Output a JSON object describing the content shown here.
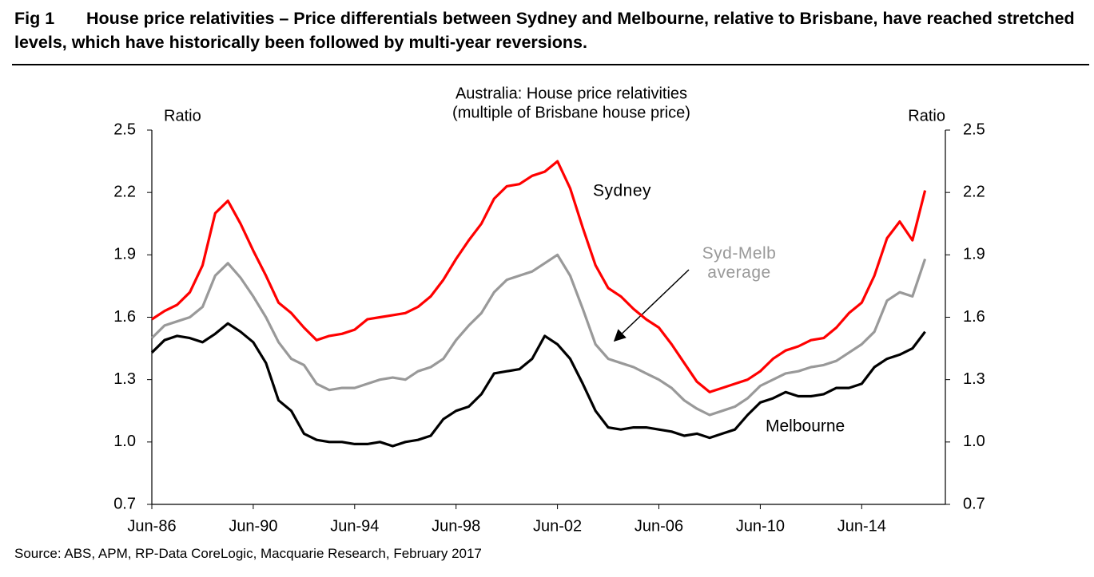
{
  "header": {
    "figure": "Fig 1",
    "title": "House price relativities – Price differentials between Sydney and Melbourne, relative to Brisbane, have reached stretched levels, which have historically been followed by multi-year reversions."
  },
  "chart_data": {
    "type": "line",
    "title": "Australia: House price relativities",
    "subtitle": "(multiple of Brisbane house price)",
    "ylabel": "Ratio",
    "y2label": "Ratio",
    "x": [
      "Jun-86",
      "Dec-86",
      "Jun-87",
      "Dec-87",
      "Jun-88",
      "Dec-88",
      "Jun-89",
      "Dec-89",
      "Jun-90",
      "Dec-90",
      "Jun-91",
      "Dec-91",
      "Jun-92",
      "Dec-92",
      "Jun-93",
      "Dec-93",
      "Jun-94",
      "Dec-94",
      "Jun-95",
      "Dec-95",
      "Jun-96",
      "Dec-96",
      "Jun-97",
      "Dec-97",
      "Jun-98",
      "Dec-98",
      "Jun-99",
      "Dec-99",
      "Jun-00",
      "Dec-00",
      "Jun-01",
      "Dec-01",
      "Jun-02",
      "Dec-02",
      "Jun-03",
      "Dec-03",
      "Jun-04",
      "Dec-04",
      "Jun-05",
      "Dec-05",
      "Jun-06",
      "Dec-06",
      "Jun-07",
      "Dec-07",
      "Jun-08",
      "Dec-08",
      "Jun-09",
      "Dec-09",
      "Jun-10",
      "Dec-10",
      "Jun-11",
      "Dec-11",
      "Jun-12",
      "Dec-12",
      "Jun-13",
      "Dec-13",
      "Jun-14",
      "Dec-14",
      "Jun-15",
      "Dec-15",
      "Jun-16",
      "Dec-16"
    ],
    "xticks": [
      "Jun-86",
      "Jun-90",
      "Jun-94",
      "Jun-98",
      "Jun-02",
      "Jun-06",
      "Jun-10",
      "Jun-14"
    ],
    "ylim": [
      0.7,
      2.5
    ],
    "yticks": [
      0.7,
      {
        "value": 1,
        "label": "1.0"
      },
      1.3,
      1.6,
      1.9,
      2.2,
      2.5
    ],
    "y2lim": [
      0.7,
      2.5
    ],
    "y2ticks": [
      0.7,
      {
        "value": 1,
        "label": "1.0"
      },
      1.3,
      1.6,
      1.9,
      2.2,
      2.5
    ],
    "series": [
      {
        "name": "Sydney",
        "color": "#ff0000",
        "values": [
          1.59,
          1.63,
          1.66,
          1.72,
          1.85,
          2.1,
          2.16,
          2.05,
          1.92,
          1.8,
          1.67,
          1.62,
          1.55,
          1.49,
          1.51,
          1.52,
          1.54,
          1.59,
          1.6,
          1.61,
          1.62,
          1.65,
          1.7,
          1.78,
          1.88,
          1.97,
          2.05,
          2.17,
          2.23,
          2.24,
          2.28,
          2.3,
          2.35,
          2.22,
          2.03,
          1.85,
          1.74,
          1.7,
          1.64,
          1.59,
          1.55,
          1.47,
          1.38,
          1.29,
          1.24,
          1.26,
          1.28,
          1.3,
          1.34,
          1.4,
          1.44,
          1.46,
          1.49,
          1.5,
          1.55,
          1.62,
          1.67,
          1.8,
          1.98,
          2.06,
          1.97,
          2.21
        ]
      },
      {
        "name": "Syd-Melb average",
        "color": "#999999",
        "values": [
          1.5,
          1.56,
          1.58,
          1.6,
          1.65,
          1.8,
          1.86,
          1.79,
          1.7,
          1.6,
          1.48,
          1.4,
          1.37,
          1.28,
          1.25,
          1.26,
          1.26,
          1.28,
          1.3,
          1.31,
          1.3,
          1.34,
          1.36,
          1.4,
          1.49,
          1.56,
          1.62,
          1.72,
          1.78,
          1.8,
          1.82,
          1.86,
          1.9,
          1.8,
          1.64,
          1.47,
          1.4,
          1.38,
          1.36,
          1.33,
          1.3,
          1.26,
          1.2,
          1.16,
          1.13,
          1.15,
          1.17,
          1.21,
          1.27,
          1.3,
          1.33,
          1.34,
          1.36,
          1.37,
          1.39,
          1.43,
          1.47,
          1.53,
          1.68,
          1.72,
          1.7,
          1.88
        ]
      },
      {
        "name": "Melbourne",
        "color": "#000000",
        "values": [
          1.43,
          1.49,
          1.51,
          1.5,
          1.48,
          1.52,
          1.57,
          1.53,
          1.48,
          1.38,
          1.2,
          1.15,
          1.04,
          1.01,
          1.0,
          1.0,
          0.99,
          0.99,
          1.0,
          0.98,
          1.0,
          1.01,
          1.03,
          1.11,
          1.15,
          1.17,
          1.23,
          1.33,
          1.34,
          1.35,
          1.4,
          1.51,
          1.47,
          1.4,
          1.28,
          1.15,
          1.07,
          1.06,
          1.07,
          1.07,
          1.06,
          1.05,
          1.03,
          1.04,
          1.02,
          1.04,
          1.06,
          1.13,
          1.19,
          1.21,
          1.24,
          1.22,
          1.22,
          1.23,
          1.26,
          1.26,
          1.28,
          1.36,
          1.4,
          1.42,
          1.45,
          1.53
        ]
      }
    ]
  },
  "source": "Source: ABS, APM, RP-Data CoreLogic, Macquarie Research, February 2017"
}
